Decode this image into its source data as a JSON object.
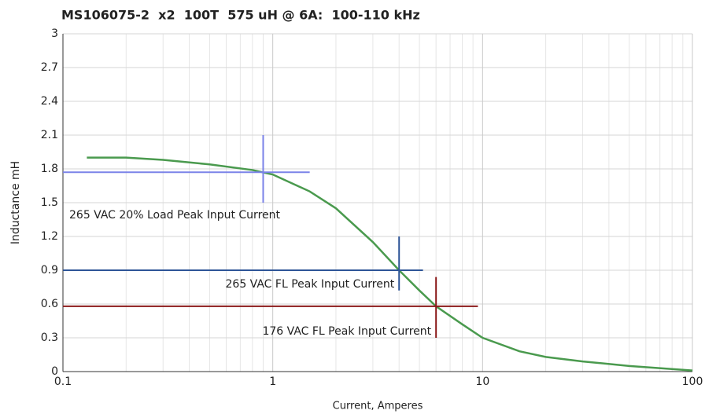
{
  "chart_data": {
    "type": "line",
    "title": "MS106075-2  x2  100T  575 uH @ 6A:  100-110 kHz",
    "x_label": "Current, Amperes",
    "y_label": "Inductance mH",
    "x_log": true,
    "grid": true,
    "xlim": [
      0.1,
      100
    ],
    "ylim": [
      0,
      3
    ],
    "xticks": [
      0.1,
      1,
      10,
      100
    ],
    "xminor_ticks": [
      0.2,
      0.3,
      0.4,
      0.5,
      0.6,
      0.7,
      0.8,
      0.9,
      2,
      3,
      4,
      5,
      6,
      7,
      8,
      9,
      20,
      30,
      40,
      50,
      60,
      70,
      80,
      90
    ],
    "yticks": [
      0,
      0.3,
      0.6,
      0.9,
      1.2,
      1.5,
      1.8,
      2.1,
      2.4,
      2.7,
      3
    ],
    "series": [
      {
        "name": "Inductance",
        "color": "#4a9a4e",
        "x": [
          0.13,
          0.2,
          0.3,
          0.5,
          0.8,
          1,
          1.5,
          2,
          3,
          4,
          5,
          6,
          8,
          10,
          15,
          20,
          30,
          50,
          100
        ],
        "values": [
          1.9,
          1.9,
          1.88,
          1.84,
          1.79,
          1.75,
          1.6,
          1.45,
          1.15,
          0.9,
          0.72,
          0.58,
          0.42,
          0.3,
          0.18,
          0.13,
          0.09,
          0.05,
          0.01
        ]
      }
    ],
    "markers": [
      {
        "label": "265 VAC 20% Load Peak Input Current",
        "color": "#7b83e8",
        "x": 0.9,
        "y": 1.77,
        "x_end": 1.5,
        "y_range": [
          1.5,
          2.1
        ]
      },
      {
        "label": "265 VAC FL Peak Input Current",
        "color": "#2e5597",
        "x": 4,
        "y": 0.9,
        "x_end": 5.2,
        "y_range": [
          0.72,
          1.2
        ]
      },
      {
        "label": "176 VAC FL Peak Input Current",
        "color": "#8b1a1a",
        "x": 6,
        "y": 0.58,
        "x_end": 9.5,
        "y_range": [
          0.3,
          0.84
        ]
      }
    ]
  }
}
